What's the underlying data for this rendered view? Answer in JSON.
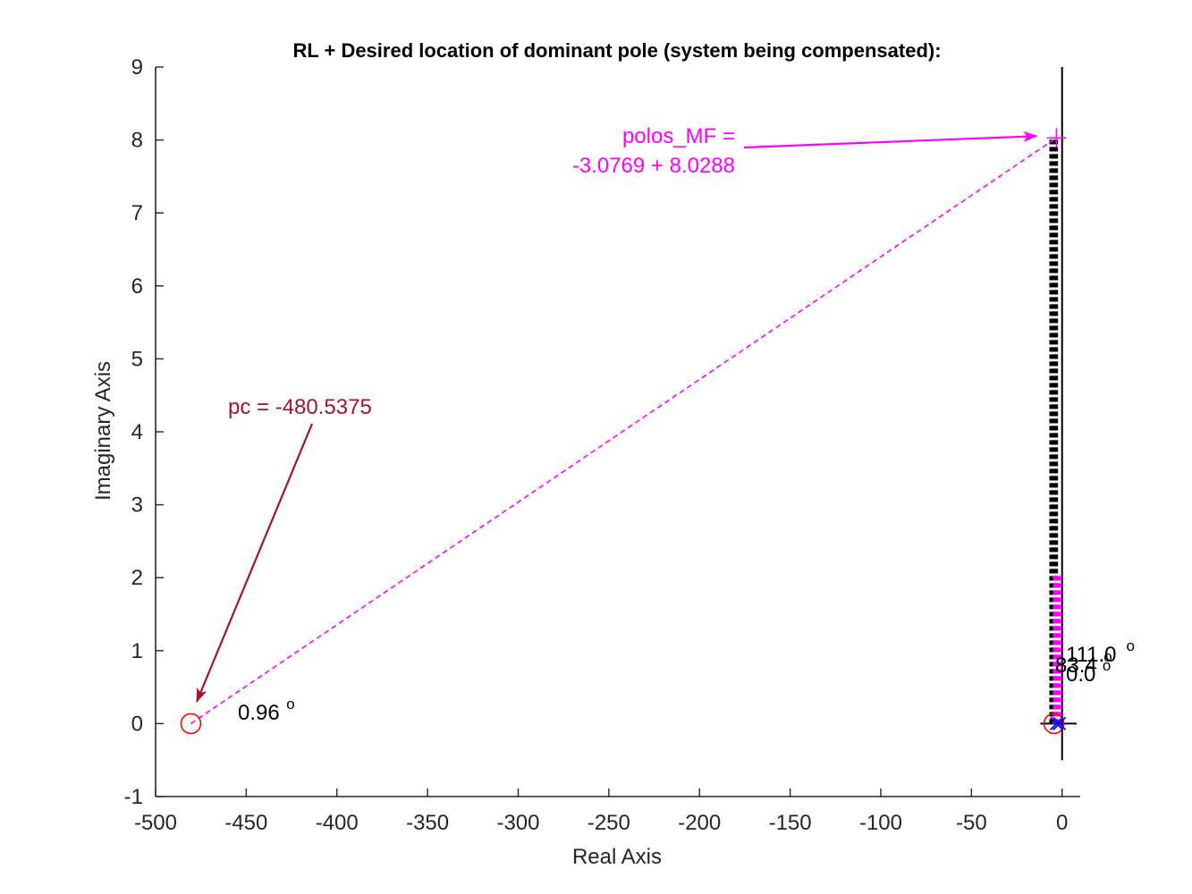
{
  "chart_data": {
    "type": "scatter",
    "title": "RL + Desired location of dominant pole (system being compensated):",
    "xlabel": "Real Axis",
    "ylabel": "Imaginary Axis",
    "xlim": [
      -500,
      10
    ],
    "ylim": [
      -1,
      9
    ],
    "xticks": [
      "-500",
      "-450",
      "-400",
      "-350",
      "-300",
      "-250",
      "-200",
      "-150",
      "-100",
      "-50",
      "0"
    ],
    "yticks": [
      "-1",
      "0",
      "1",
      "2",
      "3",
      "4",
      "5",
      "6",
      "7",
      "8",
      "9"
    ],
    "grid": false,
    "legend": "none",
    "desired_pole": {
      "x": -3.0769,
      "y": 8.0288
    },
    "compensator_pole": {
      "x": -480.5375,
      "y": 0
    },
    "open_loop_poles": [
      {
        "x": -3.0,
        "y": 0
      },
      {
        "x": -1.5,
        "y": 0
      }
    ],
    "open_loop_zeros": [
      {
        "x": -4.5,
        "y": 0
      },
      {
        "x": -480.5375,
        "y": 0
      }
    ],
    "locus_segment": {
      "x": 0,
      "y_from": -0.5,
      "y_to": 9
    },
    "angle_guides_black": [
      -6.5,
      -5.5,
      -4.6,
      -3.8,
      -3.2,
      -2.8
    ],
    "angle_guides_magenta": [
      -4.5,
      -3.6,
      -3.0,
      -2.0,
      -1.3,
      -0.6
    ],
    "angle_guides_magenta_top": 2.05,
    "annotations": {
      "polos_line1": "polos_MF =",
      "polos_line2": "-3.0769 + 8.0288",
      "pc_label": "pc = -480.5375",
      "angle_left": "0.96",
      "angle_right_a": "111.0",
      "angle_right_b": "83.4",
      "angle_right_c": "0.0",
      "degree_sign": "o"
    },
    "colors": {
      "axis": "#262626",
      "desired": "#ff00ff",
      "pc": "#a2142f",
      "zero": "#ff0000",
      "pole": "#0000ff",
      "guide": "#000000"
    }
  }
}
